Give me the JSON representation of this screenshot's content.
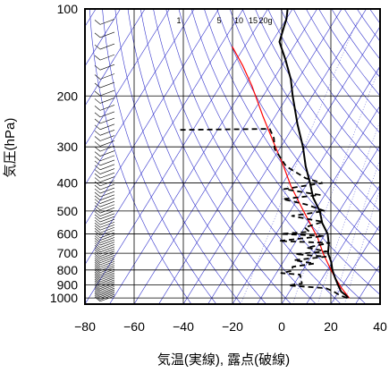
{
  "chart_data": {
    "type": "line",
    "title": "",
    "xlabel": "気温(実線), 露点(破線)",
    "ylabel": "気圧(hPa)",
    "xlim": [
      -80,
      40
    ],
    "ylim": [
      1050,
      100
    ],
    "y_scale": "log",
    "x_ticks": [
      -80,
      -60,
      -40,
      -20,
      0,
      20,
      40
    ],
    "x_tick_labels": [
      "−80",
      "−60",
      "−40",
      "−20",
      "0",
      "20",
      "40"
    ],
    "y_ticks": [
      100,
      200,
      300,
      400,
      500,
      600,
      700,
      800,
      900,
      1000
    ],
    "y_tick_labels": [
      "100",
      "200",
      "300",
      "400",
      "500",
      "600",
      "700",
      "800",
      "900",
      "1000"
    ],
    "grid": true,
    "mixing_ratio_labels": [
      "1",
      "5",
      "10",
      "15",
      "20g"
    ],
    "mixing_ratio_values": [
      1,
      5,
      10,
      15,
      20
    ],
    "colors": {
      "temperature": "#000000",
      "dewpoint": "#000000",
      "parcel": "#ff0000",
      "guide_lines": "#3333cc",
      "grid": "#000000"
    },
    "series": [
      {
        "role": "temperature",
        "style": "solid",
        "points": [
          [
            25.5,
            1000
          ],
          [
            24,
            980
          ],
          [
            21,
            950
          ],
          [
            19.5,
            925
          ],
          [
            18,
            900
          ],
          [
            15,
            850
          ],
          [
            12,
            800
          ],
          [
            9.5,
            750
          ],
          [
            6,
            700
          ],
          [
            4,
            650
          ],
          [
            1,
            600
          ],
          [
            -4,
            550
          ],
          [
            -8,
            500
          ],
          [
            -14,
            450
          ],
          [
            -19,
            400
          ],
          [
            -25,
            350
          ],
          [
            -31,
            300
          ],
          [
            -39,
            250
          ],
          [
            -48,
            200
          ],
          [
            -53,
            175
          ],
          [
            -60,
            150
          ],
          [
            -67,
            130
          ],
          [
            -69,
            115
          ],
          [
            -70,
            108
          ],
          [
            -72,
            100
          ]
        ]
      },
      {
        "role": "dewpoint",
        "style": "dashed",
        "points": [
          [
            25,
            1000
          ],
          [
            21,
            975
          ],
          [
            18,
            950
          ],
          [
            14,
            925
          ],
          [
            -2,
            905
          ],
          [
            3,
            890
          ],
          [
            0,
            830
          ],
          [
            -8,
            820
          ],
          [
            -4,
            805
          ],
          [
            -5,
            780
          ],
          [
            3,
            760
          ],
          [
            -6,
            740
          ],
          [
            6,
            720
          ],
          [
            -7,
            705
          ],
          [
            5,
            690
          ],
          [
            -4,
            670
          ],
          [
            4,
            645
          ],
          [
            -17,
            635
          ],
          [
            0,
            610
          ],
          [
            -18,
            600
          ],
          [
            -7,
            590
          ],
          [
            -10,
            570
          ],
          [
            -4,
            545
          ],
          [
            -18,
            520
          ],
          [
            -6,
            500
          ],
          [
            -15,
            475
          ],
          [
            -26,
            455
          ],
          [
            -12,
            440
          ],
          [
            -28,
            420
          ],
          [
            -14,
            400
          ],
          [
            -22,
            385
          ],
          [
            -33,
            350
          ],
          [
            -42,
            305
          ],
          [
            -45,
            280
          ],
          [
            -49,
            260
          ],
          [
            -86,
            262
          ]
        ]
      },
      {
        "role": "parcel",
        "style": "solid",
        "points": [
          [
            26,
            1000
          ],
          [
            20,
            920
          ],
          [
            15,
            850
          ],
          [
            10,
            780
          ],
          [
            4,
            700
          ],
          [
            -2,
            620
          ],
          [
            -9,
            550
          ],
          [
            -17,
            480
          ],
          [
            -26,
            410
          ],
          [
            -34,
            350
          ],
          [
            -44,
            290
          ],
          [
            -55,
            235
          ],
          [
            -67,
            185
          ],
          [
            -76,
            157
          ],
          [
            -85,
            135
          ]
        ]
      }
    ]
  }
}
